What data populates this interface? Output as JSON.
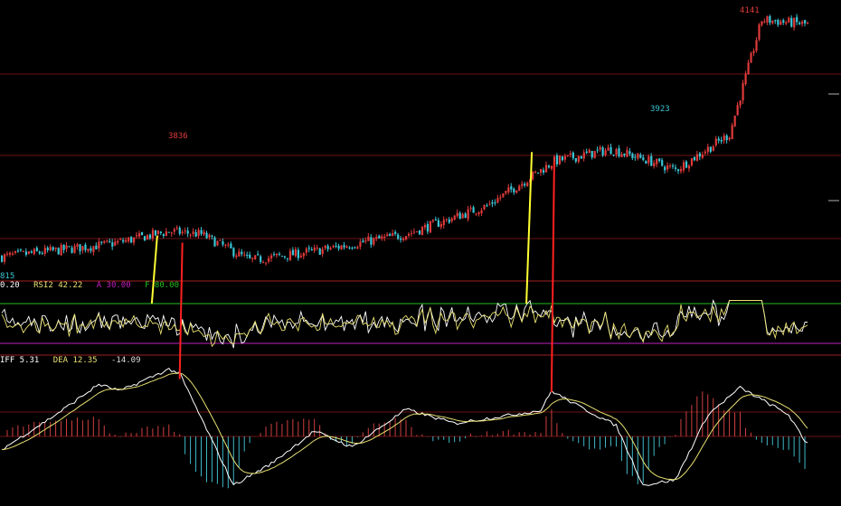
{
  "colors": {
    "background": "#000000",
    "up": "#e03a3a",
    "down": "#39c6d6",
    "grid": "#6b1515",
    "rsi1": "#ffffff",
    "rsi2": "#e8e070",
    "level_a": "#c020c0",
    "level_f": "#20c020",
    "signal_buy": "#ffff33",
    "signal_sell": "#ff2020",
    "diff": "#ffffff",
    "dea": "#e8e070",
    "macd_pos": "#d04040",
    "macd_neg": "#40b8c8"
  },
  "chart_data": [
    {
      "type": "candlestick",
      "annotations": [
        {
          "label": "815",
          "at": "first-low"
        },
        {
          "label": "3836",
          "at": "peak-1"
        },
        {
          "label": "3923",
          "at": "trough-2"
        },
        {
          "label": "4141",
          "at": "high"
        }
      ],
      "ylim": [
        3780,
        4150
      ],
      "trend_keypoints": [
        {
          "x": 0,
          "y": 3800
        },
        {
          "x": 40,
          "y": 3818
        },
        {
          "x": 62,
          "y": 3836
        },
        {
          "x": 74,
          "y": 3832
        },
        {
          "x": 92,
          "y": 3795
        },
        {
          "x": 116,
          "y": 3808
        },
        {
          "x": 150,
          "y": 3832
        },
        {
          "x": 180,
          "y": 3872
        },
        {
          "x": 205,
          "y": 3935
        },
        {
          "x": 226,
          "y": 3952
        },
        {
          "x": 240,
          "y": 3936
        },
        {
          "x": 250,
          "y": 3923
        },
        {
          "x": 270,
          "y": 3973
        },
        {
          "x": 282,
          "y": 4135
        },
        {
          "x": 300,
          "y": 4128
        },
        {
          "x": 310,
          "y": 4112
        }
      ]
    },
    {
      "type": "line",
      "indicator": "RSI",
      "legend": {
        "rsi1": "0.20",
        "rsi2": "RSI2 42.22",
        "a": "A 30.00",
        "f": "F 80.00"
      },
      "ylim": [
        0,
        100
      ],
      "levels": {
        "a": 30,
        "f": 80
      },
      "series": [
        {
          "name": "RSI1",
          "base": 52
        },
        {
          "name": "RSI2",
          "base": 50
        }
      ]
    },
    {
      "type": "line",
      "indicator": "MACD",
      "legend": {
        "diff": "IFF 5.31",
        "dea": "DEA 12.35",
        "macd": "-14.09"
      },
      "ylim": [
        -60,
        65
      ],
      "diff_keypoints": [
        {
          "x": 0,
          "y": -12
        },
        {
          "x": 20,
          "y": 20
        },
        {
          "x": 36,
          "y": 48
        },
        {
          "x": 44,
          "y": 42
        },
        {
          "x": 62,
          "y": 62
        },
        {
          "x": 66,
          "y": 58
        },
        {
          "x": 86,
          "y": -45
        },
        {
          "x": 100,
          "y": -25
        },
        {
          "x": 116,
          "y": 5
        },
        {
          "x": 130,
          "y": -10
        },
        {
          "x": 150,
          "y": 25
        },
        {
          "x": 168,
          "y": 12
        },
        {
          "x": 200,
          "y": 24
        },
        {
          "x": 204,
          "y": 42
        },
        {
          "x": 214,
          "y": 28
        },
        {
          "x": 228,
          "y": 10
        },
        {
          "x": 238,
          "y": -45
        },
        {
          "x": 250,
          "y": -40
        },
        {
          "x": 262,
          "y": 20
        },
        {
          "x": 274,
          "y": 45
        },
        {
          "x": 292,
          "y": 20
        },
        {
          "x": 298,
          "y": -5
        }
      ]
    }
  ],
  "signals": [
    {
      "type": "buy",
      "x": 57,
      "from_price": 3830
    },
    {
      "type": "sell",
      "x": 67,
      "from_price": 3820
    },
    {
      "type": "buy",
      "x": 196,
      "from_price": 3948
    },
    {
      "type": "sell",
      "x": 205,
      "from_price": 3935
    }
  ]
}
